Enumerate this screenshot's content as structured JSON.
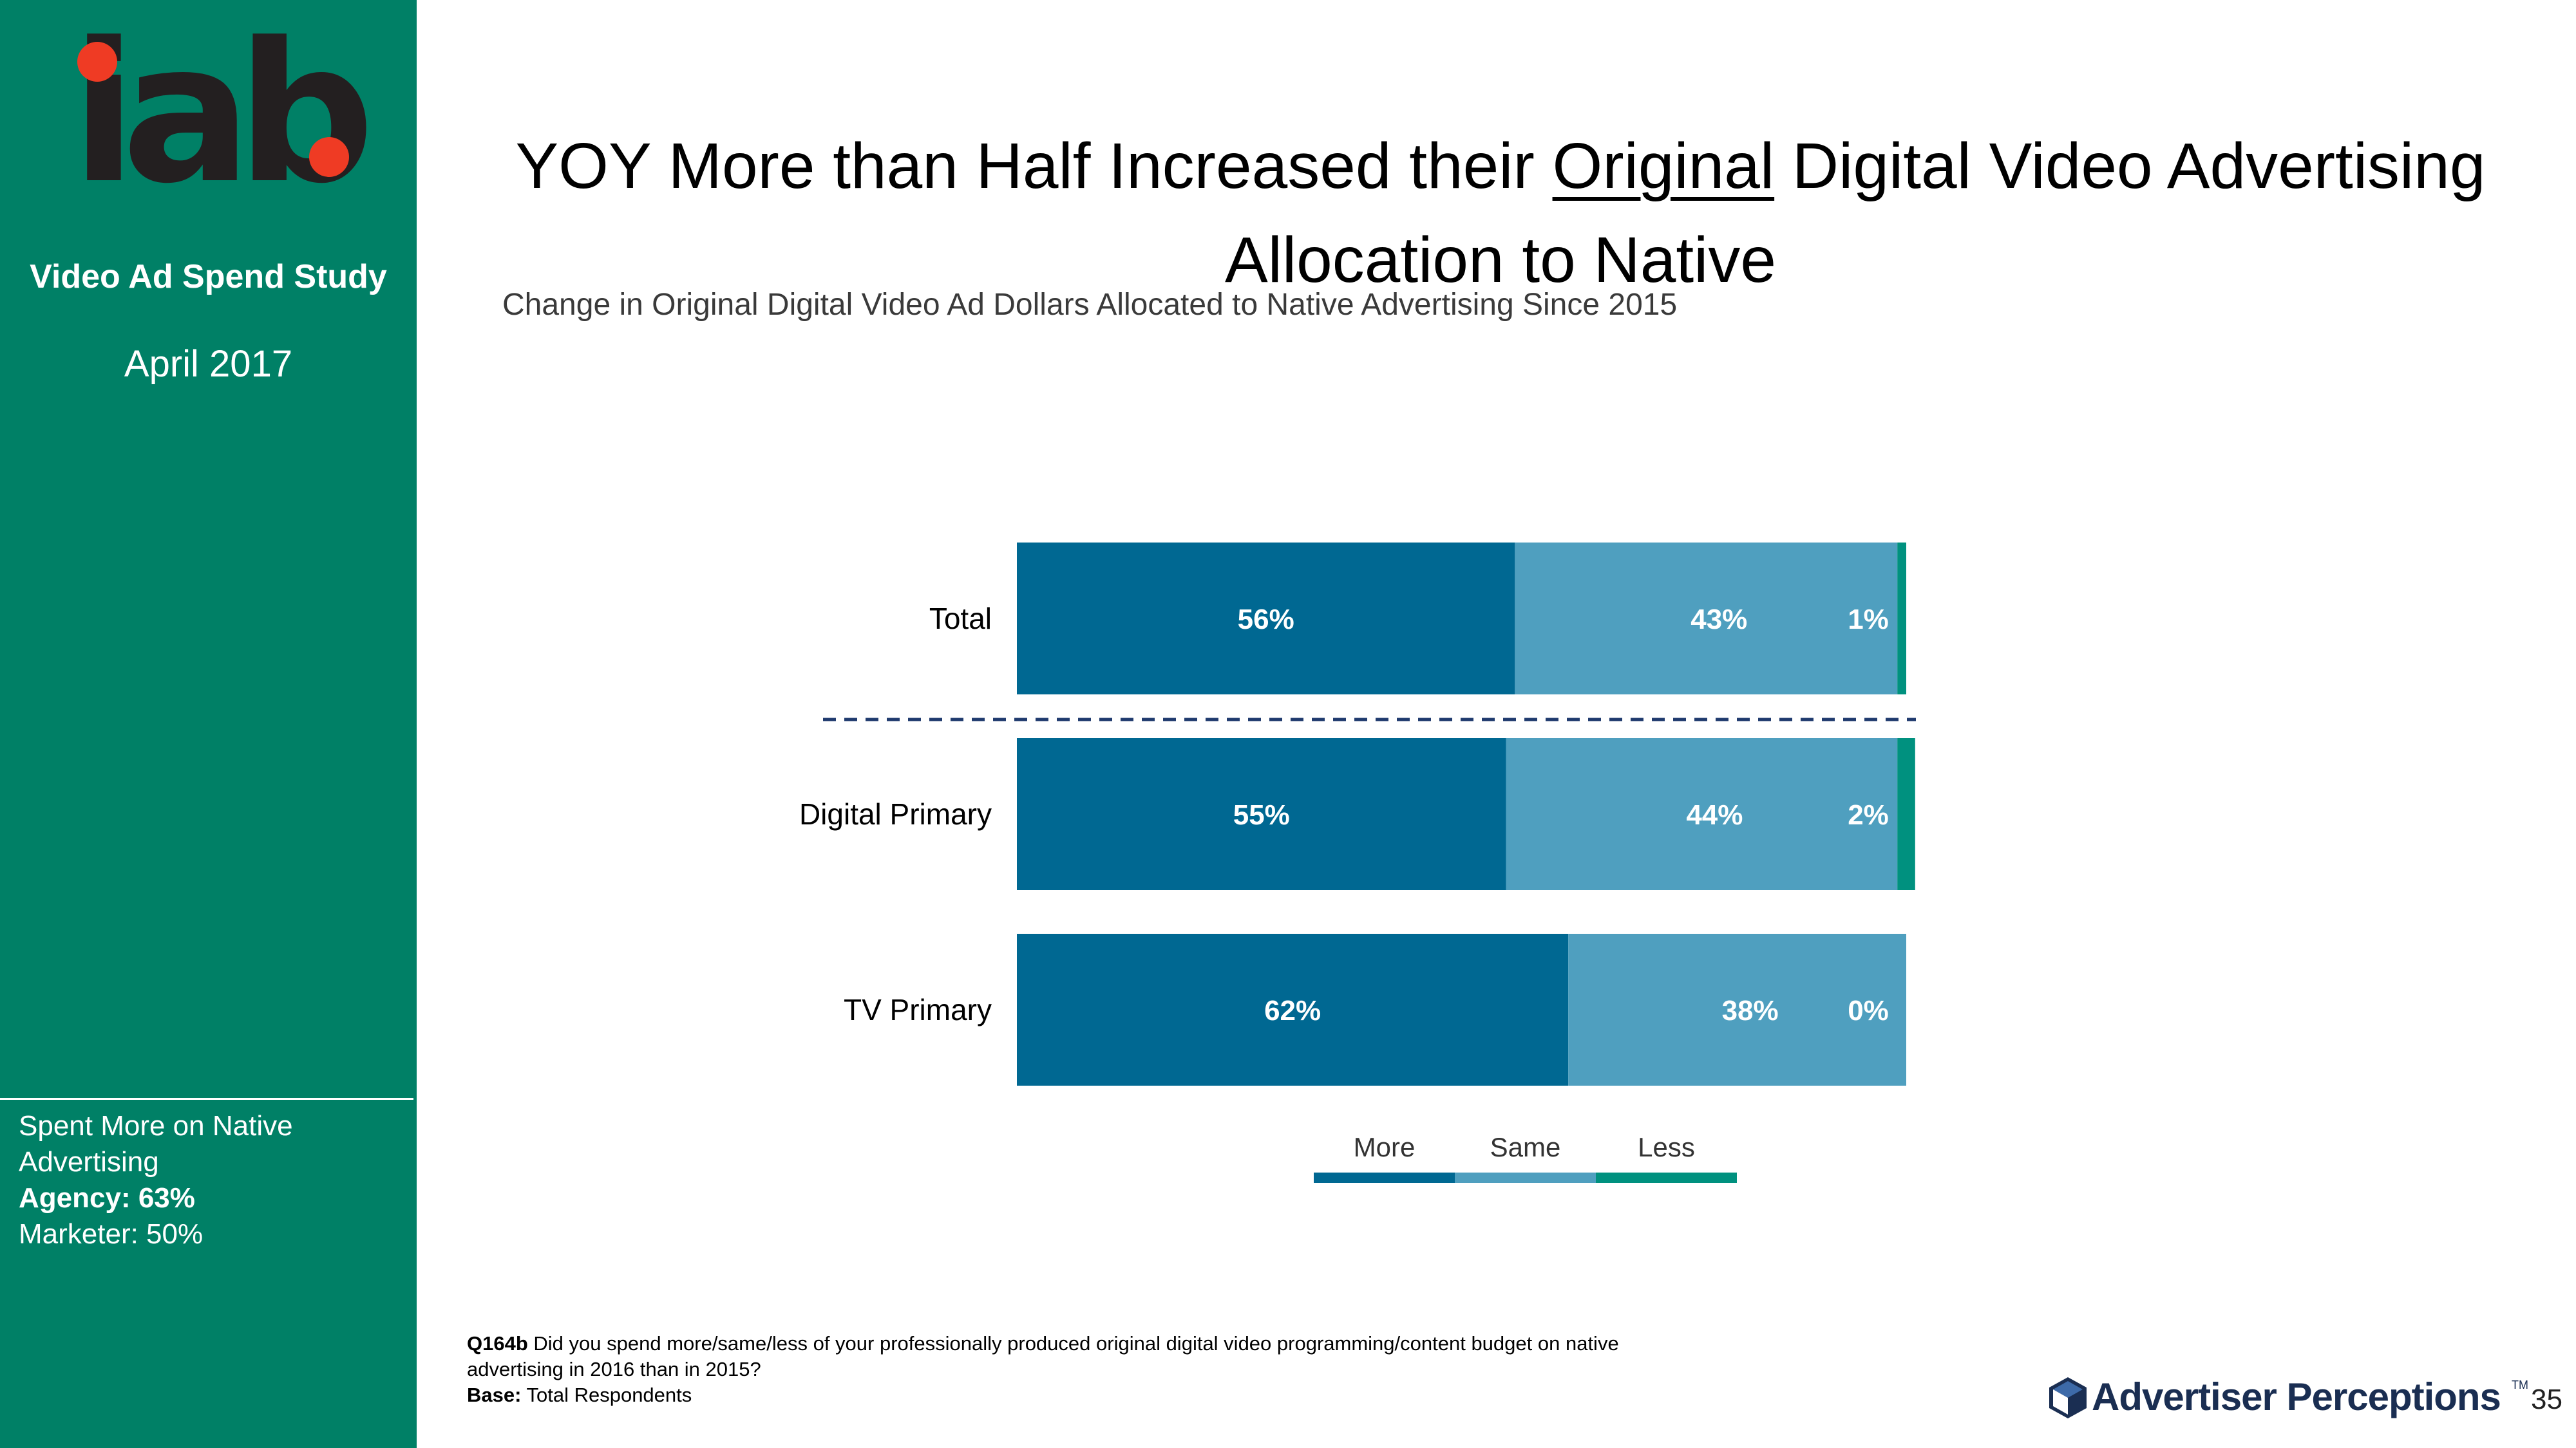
{
  "sidebar": {
    "logo_text": "iab",
    "study_title": "Video Ad Spend Study",
    "date": "April 2017",
    "callout": {
      "heading": "Spent More on Native Advertising",
      "agency": "Agency: 63%",
      "marketer": "Marketer: 50%"
    }
  },
  "header": {
    "title_pre": "YOY More than Half Increased their ",
    "title_emph": "Original",
    "title_post": " Digital Video Advertising Allocation to Native",
    "subtitle": "Change in Original Digital Video Ad Dollars Allocated to Native Advertising Since 2015"
  },
  "chart_data": {
    "type": "bar",
    "orientation": "horizontal",
    "stacked": true,
    "categories": [
      "Total",
      "Digital Primary",
      "TV Primary"
    ],
    "series": [
      {
        "name": "More",
        "values": [
          56,
          55,
          62
        ],
        "labels": [
          "56%",
          "55%",
          "62%"
        ],
        "color": "#006892"
      },
      {
        "name": "Same",
        "values": [
          43,
          44,
          38
        ],
        "labels": [
          "43%",
          "44%",
          "38%"
        ],
        "color": "#4f9fbf"
      },
      {
        "name": "Less",
        "values": [
          1,
          2,
          0
        ],
        "labels": [
          "1%",
          "2%",
          "0%"
        ],
        "color": "#00917f"
      }
    ],
    "xlim": [
      0,
      100
    ],
    "legend_position": "bottom",
    "separator_after_category": "Total"
  },
  "footnote": {
    "q_label": "Q164b",
    "question": " Did you spend more/same/less of your professionally produced original digital video programming/content budget on native advertising in 2016 than in 2015?",
    "base_label": "Base:",
    "base": " Total Respondents"
  },
  "brand": {
    "name": "Advertiser Perceptions",
    "tm": "TM"
  },
  "page_number": "35"
}
